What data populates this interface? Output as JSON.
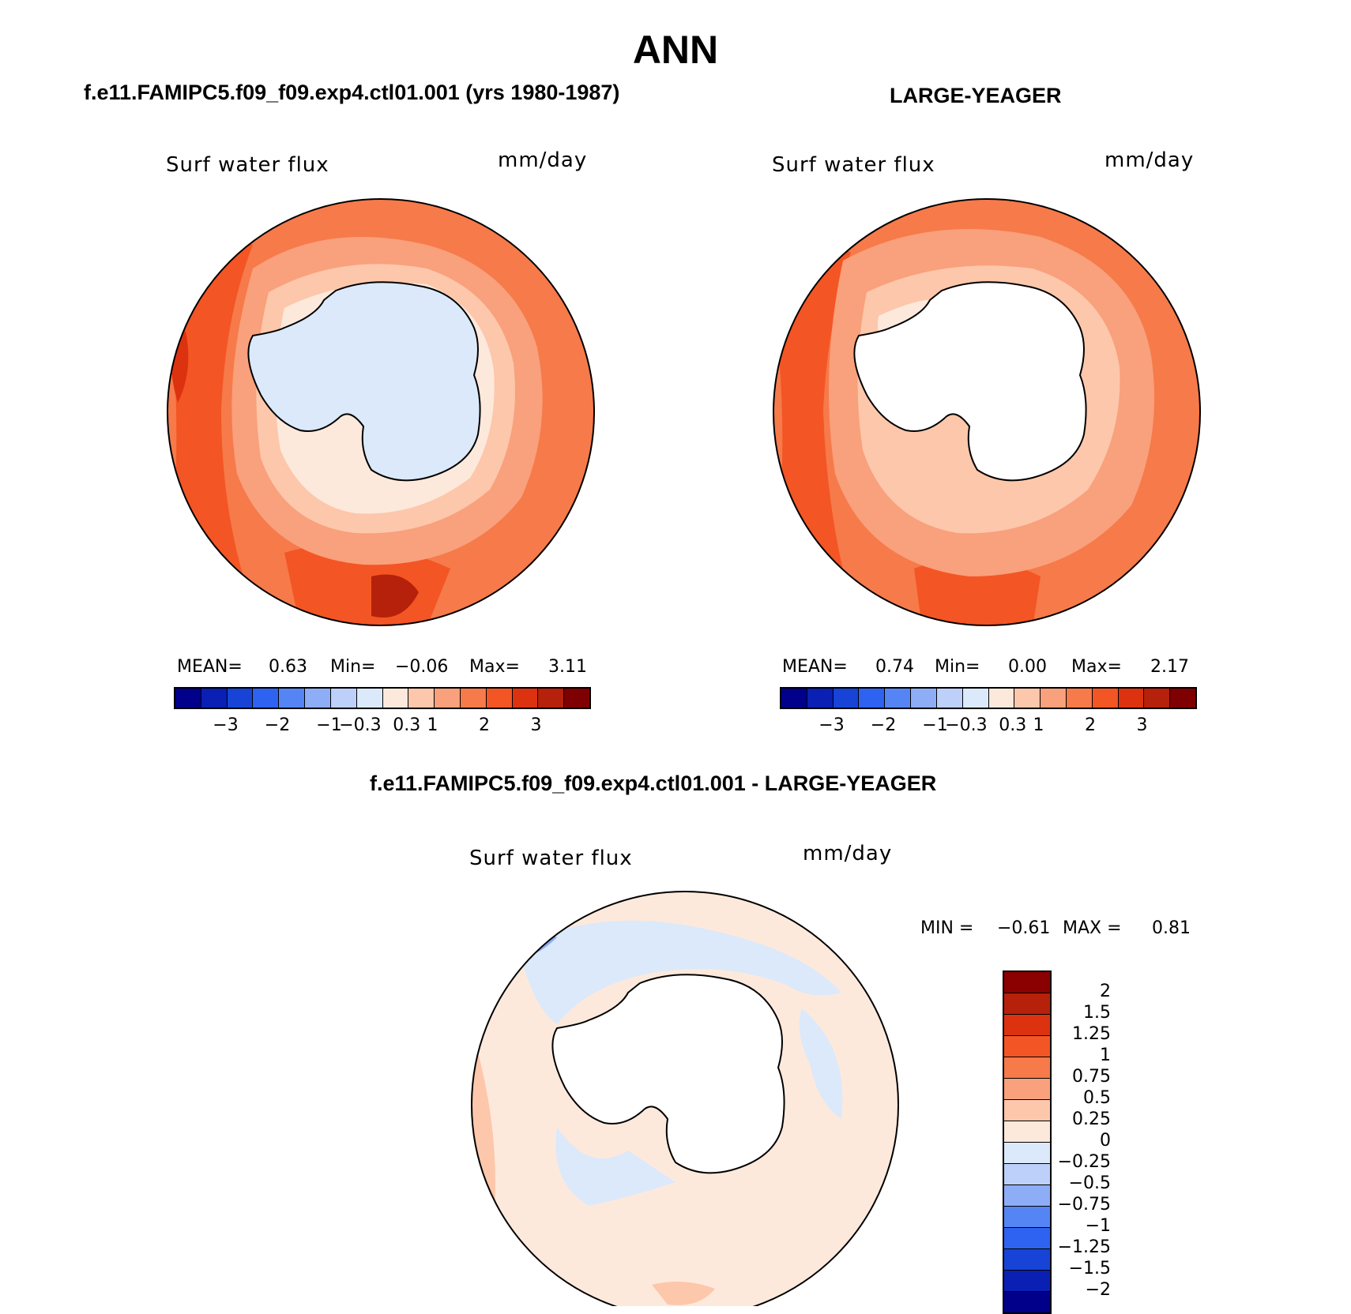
{
  "page": {
    "title": "ANN",
    "panel_titles": {
      "left": "f.e11.FAMIPC5.f09_f09.exp4.ctl01.001 (yrs 1980-1987)",
      "right": "LARGE-YEAGER",
      "diff": "f.e11.FAMIPC5.f09_f09.exp4.ctl01.001 - LARGE-YEAGER"
    }
  },
  "panels": {
    "left": {
      "variable": "Surf water flux",
      "units": "mm/day",
      "mean_label": "MEAN=",
      "mean": "0.63",
      "min_label": "Min=",
      "min": "−0.06",
      "max_label": "Max=",
      "max": "3.11"
    },
    "right": {
      "variable": "Surf water flux",
      "units": "mm/day",
      "mean_label": "MEAN=",
      "mean": "0.74",
      "min_label": "Min=",
      "min": "0.00",
      "max_label": "Max=",
      "max": "2.17"
    },
    "diff": {
      "variable": "Surf water flux",
      "units": "mm/day",
      "min_label": "MIN =",
      "min": "−0.61",
      "max_label": "MAX =",
      "max": "0.81"
    }
  },
  "colorbars": {
    "main": {
      "colors": [
        "#00008b",
        "#0a1fb3",
        "#1744d6",
        "#2e62f0",
        "#5585f5",
        "#8eadf7",
        "#bcd0f9",
        "#dbe9fa",
        "#fde9dc",
        "#fdc7ab",
        "#f9a07c",
        "#f67a4a",
        "#f45524",
        "#dc3210",
        "#b5210a",
        "#7f0000"
      ],
      "ticks": [
        "−3",
        "−2",
        "−1",
        "−0.3",
        "0.3",
        "1",
        "2",
        "3"
      ]
    },
    "diff": {
      "colors": [
        "#8b0000",
        "#b5210a",
        "#dc3210",
        "#f45524",
        "#f67a4a",
        "#f9a07c",
        "#fdc7ab",
        "#fde9dc",
        "#dbe9fa",
        "#bcd0f9",
        "#8eadf7",
        "#5585f5",
        "#2e62f0",
        "#1744d6",
        "#0a1fb3",
        "#00008b"
      ],
      "ticks": [
        "2",
        "1.5",
        "1.25",
        "1",
        "0.75",
        "0.5",
        "0.25",
        "0",
        "−0.25",
        "−0.5",
        "−0.75",
        "−1",
        "−1.25",
        "−1.5",
        "−2"
      ]
    }
  },
  "map_colors": {
    "ocean_dark": "#f45524",
    "ocean_mid": "#f67a4a",
    "ocean_light": "#f9a07c",
    "ocean_pale": "#fdc7ab",
    "near_zero_pos": "#fde9dc",
    "near_zero_neg": "#dbe9fa",
    "max_red": "#b5210a",
    "land_outline": "#000000"
  }
}
